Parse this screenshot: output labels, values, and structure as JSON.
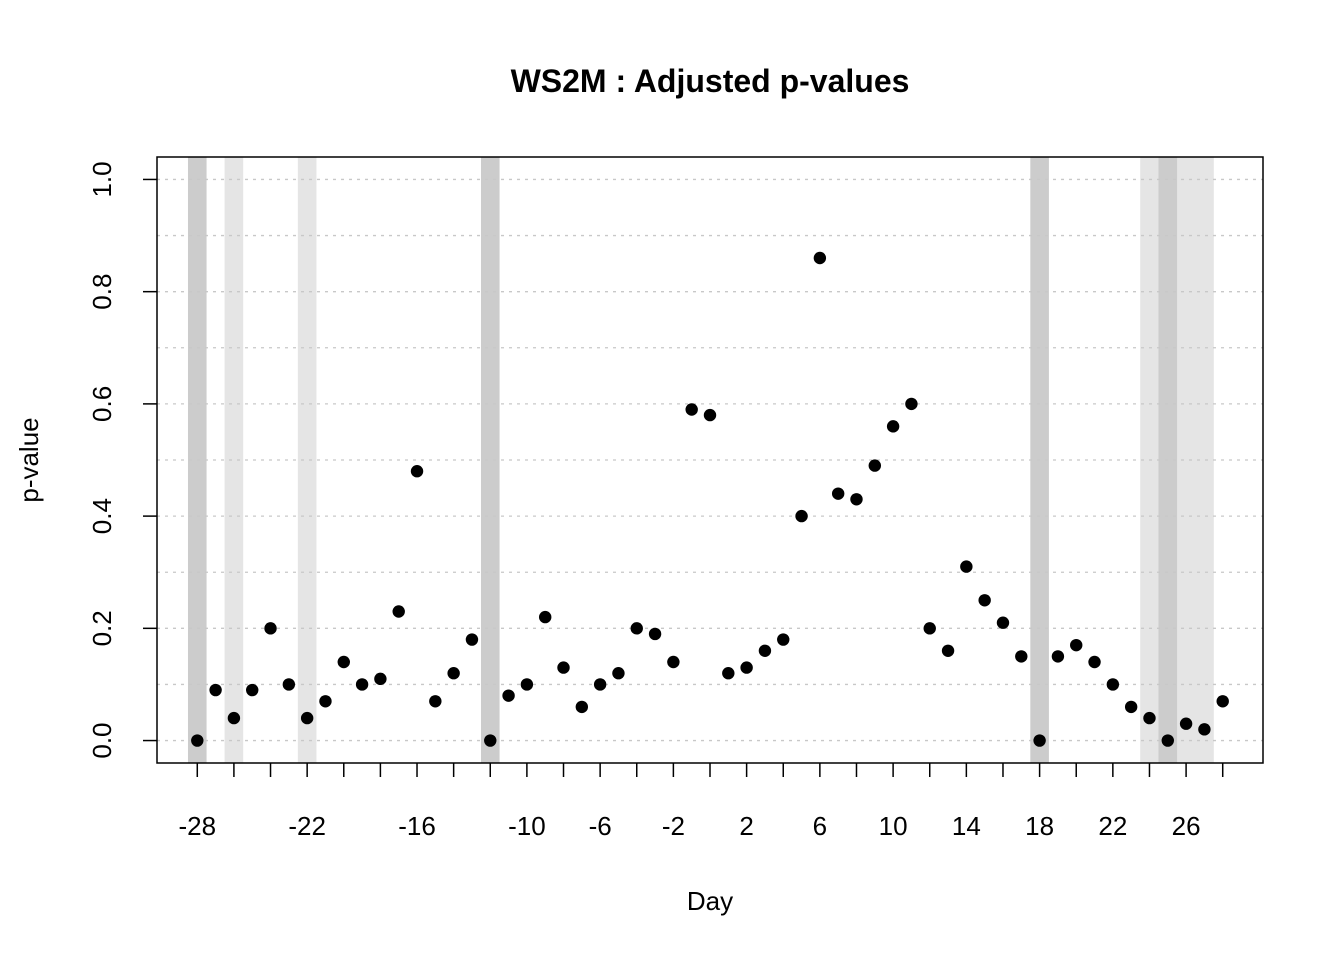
{
  "chart_data": {
    "type": "scatter",
    "title": "WS2M : Adjusted p-values",
    "xlabel": "Day",
    "ylabel": "p-value",
    "xlim": [
      -30.2,
      30.2
    ],
    "ylim": [
      -0.04,
      1.04
    ],
    "x_ticks": [
      -28,
      -22,
      -16,
      -10,
      -6,
      -2,
      2,
      6,
      10,
      14,
      18,
      22,
      26
    ],
    "x_tick_marks": [
      -28,
      -26,
      -24,
      -22,
      -20,
      -18,
      -16,
      -14,
      -12,
      -10,
      -8,
      -6,
      -4,
      -2,
      0,
      2,
      4,
      6,
      8,
      10,
      12,
      14,
      16,
      18,
      20,
      22,
      24,
      26,
      28
    ],
    "y_ticks": [
      "0.0",
      "0.2",
      "0.4",
      "0.6",
      "0.8",
      "1.0"
    ],
    "y_grid": [
      0,
      0.1,
      0.2,
      0.3,
      0.4,
      0.5,
      0.6,
      0.7,
      0.8,
      0.9,
      1.0
    ],
    "grid": true,
    "colors": {
      "highlight_dark": "#cccccc",
      "highlight_light": "#e5e5e5",
      "points": "#000000"
    },
    "highlight_bands": [
      {
        "x": -28,
        "shade": "dark"
      },
      {
        "x": -26,
        "shade": "light"
      },
      {
        "x": -22,
        "shade": "light"
      },
      {
        "x": -12,
        "shade": "dark"
      },
      {
        "x": 18,
        "shade": "dark"
      },
      {
        "x": 24,
        "shade": "light"
      },
      {
        "x": 25,
        "shade": "dark"
      },
      {
        "x": 26,
        "shade": "light"
      },
      {
        "x": 27,
        "shade": "light"
      }
    ],
    "points": [
      {
        "x": -28,
        "y": 0.0
      },
      {
        "x": -27,
        "y": 0.09
      },
      {
        "x": -26,
        "y": 0.04
      },
      {
        "x": -25,
        "y": 0.09
      },
      {
        "x": -24,
        "y": 0.2
      },
      {
        "x": -23,
        "y": 0.1
      },
      {
        "x": -22,
        "y": 0.04
      },
      {
        "x": -21,
        "y": 0.07
      },
      {
        "x": -20,
        "y": 0.14
      },
      {
        "x": -19,
        "y": 0.1
      },
      {
        "x": -18,
        "y": 0.11
      },
      {
        "x": -17,
        "y": 0.23
      },
      {
        "x": -16,
        "y": 0.48
      },
      {
        "x": -15,
        "y": 0.07
      },
      {
        "x": -14,
        "y": 0.12
      },
      {
        "x": -13,
        "y": 0.18
      },
      {
        "x": -12,
        "y": 0.0
      },
      {
        "x": -11,
        "y": 0.08
      },
      {
        "x": -10,
        "y": 0.1
      },
      {
        "x": -9,
        "y": 0.22
      },
      {
        "x": -8,
        "y": 0.13
      },
      {
        "x": -7,
        "y": 0.06
      },
      {
        "x": -6,
        "y": 0.1
      },
      {
        "x": -5,
        "y": 0.12
      },
      {
        "x": -4,
        "y": 0.2
      },
      {
        "x": -3,
        "y": 0.19
      },
      {
        "x": -2,
        "y": 0.14
      },
      {
        "x": -1,
        "y": 0.59
      },
      {
        "x": 0,
        "y": 0.58
      },
      {
        "x": 1,
        "y": 0.12
      },
      {
        "x": 2,
        "y": 0.13
      },
      {
        "x": 3,
        "y": 0.16
      },
      {
        "x": 4,
        "y": 0.18
      },
      {
        "x": 5,
        "y": 0.4
      },
      {
        "x": 6,
        "y": 0.86
      },
      {
        "x": 7,
        "y": 0.44
      },
      {
        "x": 8,
        "y": 0.43
      },
      {
        "x": 9,
        "y": 0.49
      },
      {
        "x": 10,
        "y": 0.56
      },
      {
        "x": 11,
        "y": 0.6
      },
      {
        "x": 12,
        "y": 0.2
      },
      {
        "x": 13,
        "y": 0.16
      },
      {
        "x": 14,
        "y": 0.31
      },
      {
        "x": 15,
        "y": 0.25
      },
      {
        "x": 16,
        "y": 0.21
      },
      {
        "x": 17,
        "y": 0.15
      },
      {
        "x": 18,
        "y": 0.0
      },
      {
        "x": 19,
        "y": 0.15
      },
      {
        "x": 20,
        "y": 0.17
      },
      {
        "x": 21,
        "y": 0.14
      },
      {
        "x": 22,
        "y": 0.1
      },
      {
        "x": 23,
        "y": 0.06
      },
      {
        "x": 24,
        "y": 0.04
      },
      {
        "x": 25,
        "y": 0.0
      },
      {
        "x": 26,
        "y": 0.03
      },
      {
        "x": 27,
        "y": 0.02
      },
      {
        "x": 28,
        "y": 0.07
      }
    ]
  }
}
